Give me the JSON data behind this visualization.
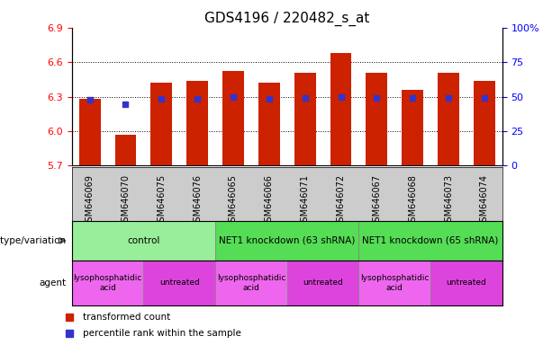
{
  "title": "GDS4196 / 220482_s_at",
  "samples": [
    "GSM646069",
    "GSM646070",
    "GSM646075",
    "GSM646076",
    "GSM646065",
    "GSM646066",
    "GSM646071",
    "GSM646072",
    "GSM646067",
    "GSM646068",
    "GSM646073",
    "GSM646074"
  ],
  "bar_values": [
    6.28,
    5.97,
    6.42,
    6.44,
    6.52,
    6.42,
    6.51,
    6.68,
    6.51,
    6.36,
    6.51,
    6.44
  ],
  "bar_bottom": 5.7,
  "blue_dot_values": [
    6.27,
    6.23,
    6.28,
    6.28,
    6.3,
    6.28,
    6.29,
    6.3,
    6.29,
    6.29,
    6.29,
    6.29
  ],
  "ylim_left": [
    5.7,
    6.9
  ],
  "ylim_right": [
    0,
    100
  ],
  "yticks_left": [
    5.7,
    6.0,
    6.3,
    6.6,
    6.9
  ],
  "yticks_right": [
    0,
    25,
    50,
    75,
    100
  ],
  "ytick_labels_right": [
    "0",
    "25",
    "50",
    "75",
    "100%"
  ],
  "bar_color": "#CC2200",
  "dot_color": "#3333CC",
  "bar_width": 0.6,
  "grid_color": "#000000",
  "background_color": "#ffffff",
  "sample_bg_color": "#cccccc",
  "genotype_groups": [
    {
      "label": "control",
      "start": 0,
      "end": 4,
      "color": "#99ee99"
    },
    {
      "label": "NET1 knockdown (63 shRNA)",
      "start": 4,
      "end": 8,
      "color": "#55dd55"
    },
    {
      "label": "NET1 knockdown (65 shRNA)",
      "start": 8,
      "end": 12,
      "color": "#55dd55"
    }
  ],
  "agent_groups": [
    {
      "label": "lysophosphatidic\nacid",
      "start": 0,
      "end": 2,
      "color": "#ee66ee"
    },
    {
      "label": "untreated",
      "start": 2,
      "end": 4,
      "color": "#dd44dd"
    },
    {
      "label": "lysophosphatidic\nacid",
      "start": 4,
      "end": 6,
      "color": "#ee66ee"
    },
    {
      "label": "untreated",
      "start": 6,
      "end": 8,
      "color": "#dd44dd"
    },
    {
      "label": "lysophosphatidic\nacid",
      "start": 8,
      "end": 10,
      "color": "#ee66ee"
    },
    {
      "label": "untreated",
      "start": 10,
      "end": 12,
      "color": "#dd44dd"
    }
  ],
  "legend_items": [
    {
      "label": "transformed count",
      "color": "#CC2200"
    },
    {
      "label": "percentile rank within the sample",
      "color": "#3333CC"
    }
  ],
  "row_labels": [
    "genotype/variation",
    "agent"
  ],
  "arrow_color": "#555555"
}
